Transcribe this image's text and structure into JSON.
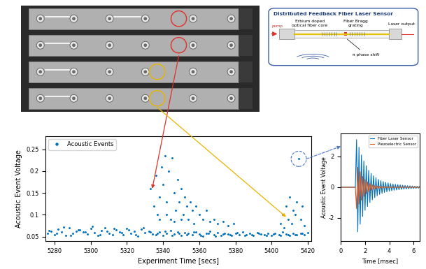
{
  "chart_data": [
    {
      "type": "scatter",
      "xlabel": "Experiment Time [secs]",
      "ylabel": "Acoustic Event Voltage",
      "x": [
        5276,
        5278,
        5280,
        5282,
        5284,
        5286,
        5288,
        5290,
        5292,
        5294,
        5296,
        5298,
        5300,
        5302,
        5304,
        5306,
        5308,
        5310,
        5312,
        5314,
        5316,
        5318,
        5320,
        5322,
        5324,
        5326,
        5328,
        5330,
        5332,
        5334,
        5336,
        5338,
        5340,
        5342,
        5344,
        5346,
        5348,
        5350,
        5352,
        5354,
        5356,
        5358,
        5360,
        5362,
        5364,
        5366,
        5368,
        5370,
        5372,
        5374,
        5376,
        5378,
        5380,
        5382,
        5384,
        5386,
        5388,
        5390,
        5392,
        5394,
        5396,
        5398,
        5400,
        5402,
        5404,
        5406,
        5408,
        5410,
        5412,
        5414,
        5416,
        5418,
        5420,
        5277,
        5281,
        5285,
        5289,
        5293,
        5297,
        5301,
        5305,
        5309,
        5313,
        5317,
        5321,
        5325,
        5329,
        5333,
        5337,
        5341,
        5345,
        5349,
        5353,
        5357,
        5361,
        5365,
        5369,
        5373,
        5377,
        5381,
        5385,
        5389,
        5393,
        5397,
        5401,
        5405,
        5409,
        5413,
        5417,
        5333,
        5335,
        5336,
        5337,
        5338,
        5339,
        5340,
        5341,
        5342,
        5343,
        5344,
        5345,
        5346,
        5347,
        5348,
        5349,
        5350,
        5351,
        5352,
        5353,
        5354,
        5355,
        5356,
        5357,
        5358,
        5360,
        5362,
        5364,
        5366,
        5368,
        5370,
        5373,
        5376,
        5379,
        5338,
        5342,
        5346,
        5350,
        5405,
        5406,
        5407,
        5408,
        5409,
        5410,
        5411,
        5412,
        5413,
        5414,
        5415,
        5416,
        5417,
        5418
      ],
      "series": [
        {
          "name": "Acoustic Events",
          "color": "#0072bd",
          "marker": "point",
          "values": [
            0.058,
            0.063,
            0.055,
            0.067,
            0.06,
            0.052,
            0.07,
            0.057,
            0.062,
            0.065,
            0.061,
            0.056,
            0.068,
            0.059,
            0.053,
            0.064,
            0.071,
            0.058,
            0.055,
            0.066,
            0.06,
            0.054,
            0.069,
            0.057,
            0.063,
            0.051,
            0.067,
            0.059,
            0.062,
            0.056,
            0.055,
            0.061,
            0.052,
            0.058,
            0.064,
            0.056,
            0.06,
            0.053,
            0.059,
            0.057,
            0.054,
            0.06,
            0.056,
            0.051,
            0.058,
            0.062,
            0.055,
            0.059,
            0.053,
            0.057,
            0.056,
            0.052,
            0.058,
            0.054,
            0.061,
            0.055,
            0.057,
            0.053,
            0.059,
            0.056,
            0.055,
            0.058,
            0.053,
            0.057,
            0.054,
            0.06,
            0.056,
            0.052,
            0.058,
            0.055,
            0.057,
            0.054,
            0.059,
            0.064,
            0.057,
            0.072,
            0.053,
            0.066,
            0.06,
            0.074,
            0.055,
            0.062,
            0.068,
            0.059,
            0.065,
            0.054,
            0.07,
            0.061,
            0.057,
            0.063,
            0.052,
            0.058,
            0.055,
            0.06,
            0.053,
            0.057,
            0.051,
            0.056,
            0.054,
            0.059,
            0.052,
            0.055,
            0.058,
            0.053,
            0.056,
            0.052,
            0.055,
            0.054,
            0.057,
            0.16,
            0.12,
            0.19,
            0.1,
            0.14,
            0.21,
            0.17,
            0.235,
            0.13,
            0.2,
            0.09,
            0.23,
            0.15,
            0.11,
            0.18,
            0.13,
            0.16,
            0.1,
            0.14,
            0.12,
            0.09,
            0.13,
            0.11,
            0.08,
            0.12,
            0.1,
            0.09,
            0.11,
            0.085,
            0.09,
            0.08,
            0.085,
            0.075,
            0.08,
            0.09,
            0.1,
            0.085,
            0.09,
            0.08,
            0.1,
            0.07,
            0.12,
            0.09,
            0.14,
            0.08,
            0.11,
            0.1,
            0.13,
            0.228,
            0.09,
            0.12,
            0.075
          ]
        }
      ],
      "xlim": [
        5275,
        5422
      ],
      "xticks": [
        5280,
        5300,
        5320,
        5340,
        5360,
        5380,
        5400,
        5420
      ],
      "ylim": [
        0.04,
        0.28
      ],
      "yticks": [
        0.05,
        0.1,
        0.15,
        0.2,
        0.25
      ],
      "grid": false,
      "legend": "upper left",
      "highlighted_points": [
        {
          "x": 5334,
          "y": 0.16,
          "color": "#e0302a"
        },
        {
          "x": 5408,
          "y": 0.095,
          "color": "#e8b400"
        },
        {
          "x": 5415,
          "y": 0.228,
          "color": "#4a78c2"
        }
      ]
    },
    {
      "type": "line",
      "xlabel": "Time [msec]",
      "ylabel": "Acoustic Event Voltage",
      "x": [
        0,
        0.5,
        1.0,
        1.2,
        1.3,
        1.4,
        1.5,
        1.6,
        1.7,
        1.8,
        1.9,
        2.0,
        2.1,
        2.2,
        2.3,
        2.4,
        2.5,
        2.6,
        2.7,
        2.8,
        2.9,
        3.0,
        3.1,
        3.2,
        3.3,
        3.4,
        3.5,
        3.6,
        3.7,
        3.8,
        3.9,
        4.0,
        4.1,
        4.2,
        4.3,
        4.4,
        4.5,
        4.6,
        4.7,
        4.8,
        4.9,
        5.0,
        5.1,
        5.2,
        5.3,
        5.4,
        5.5,
        5.6,
        5.7,
        5.8,
        5.9,
        6.0,
        6.1,
        6.2,
        6.3,
        6.4,
        6.5
      ],
      "series": [
        {
          "name": "Fiber Laser Sensor",
          "color": "#0072bd",
          "line_style": "solid",
          "values": [
            0,
            0,
            0,
            0,
            3.1,
            -2.9,
            2.6,
            -2.4,
            2.1,
            -1.9,
            1.7,
            -1.5,
            1.4,
            -1.25,
            1.1,
            -1.0,
            0.9,
            -0.82,
            0.75,
            -0.68,
            0.62,
            -0.56,
            0.51,
            -0.47,
            0.43,
            -0.4,
            0.37,
            -0.34,
            0.32,
            -0.3,
            0.28,
            -0.26,
            0.24,
            -0.23,
            0.21,
            -0.2,
            0.19,
            -0.18,
            0.17,
            -0.16,
            0.15,
            -0.14,
            0.13,
            -0.12,
            0.12,
            -0.11,
            0.1,
            -0.1,
            0.09,
            -0.09,
            0.08,
            -0.08,
            0.07,
            -0.07,
            0.06,
            -0.06,
            0.05
          ]
        },
        {
          "name": "Piezoelectric Sensor",
          "color": "#d95319",
          "line_style": "solid",
          "values": [
            0,
            0,
            0,
            0,
            -1.4,
            1.3,
            -1.1,
            1.0,
            -0.85,
            0.7,
            -0.6,
            0.5,
            -0.42,
            0.35,
            -0.3,
            0.25,
            -0.2,
            0.17,
            -0.14,
            0.12,
            -0.1,
            0.08,
            -0.07,
            0.06,
            -0.05,
            0.05,
            -0.04,
            0.04,
            -0.03,
            0.03,
            -0.03,
            0.02,
            -0.02,
            0.02,
            -0.02,
            0.01,
            -0.01,
            0.01,
            -0.01,
            0,
            0,
            0,
            0,
            0,
            0,
            0,
            0,
            0,
            0,
            0,
            0,
            0,
            0,
            0,
            0,
            0,
            0
          ]
        }
      ],
      "xlim": [
        0,
        6.5
      ],
      "xticks": [
        0,
        2,
        4,
        6
      ],
      "ylim": [
        -3.5,
        3.5
      ],
      "yticks": [
        -2,
        0,
        2
      ],
      "grid": false,
      "legend": "upper right"
    }
  ],
  "schematic": {
    "title": "Distributed Feedback Fiber Laser Sensor",
    "labels": {
      "core": "Erbium doped\noptical fiber core",
      "grating": "Fiber Bragg\ngrating",
      "pump": "pump",
      "phase_shift": "π phase shift",
      "output": "Laser output"
    }
  }
}
